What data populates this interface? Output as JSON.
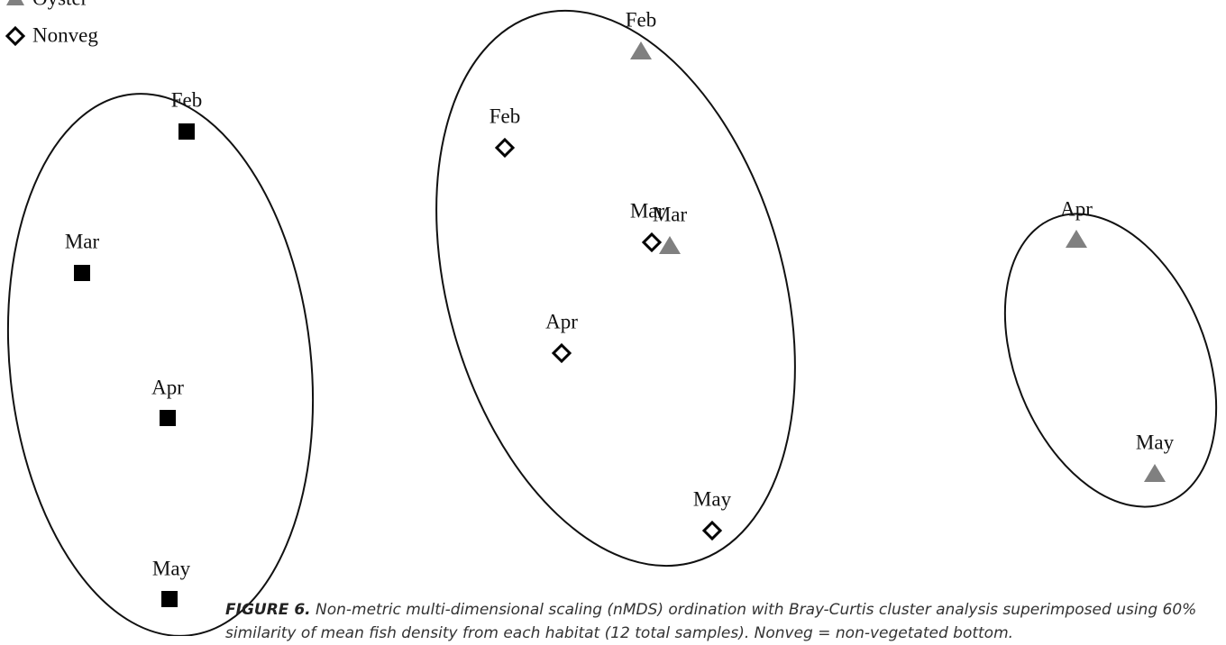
{
  "legend": [
    "Oyster",
    "Nonveg"
  ],
  "point_labels": [
    "Feb",
    "Mar",
    "Apr",
    "May",
    "Feb",
    "Mar",
    "Apr",
    "May",
    "Feb",
    "Mar",
    "Apr",
    "May"
  ],
  "caption": {
    "label": "FIGURE 6.",
    "text": "Non-metric multi-dimensional scaling (nMDS) ordination with Bray-Curtis cluster analysis superimposed using 60% similarity of mean fish density from each habitat (12 total samples). Nonveg = non-vegetated bottom."
  }
}
